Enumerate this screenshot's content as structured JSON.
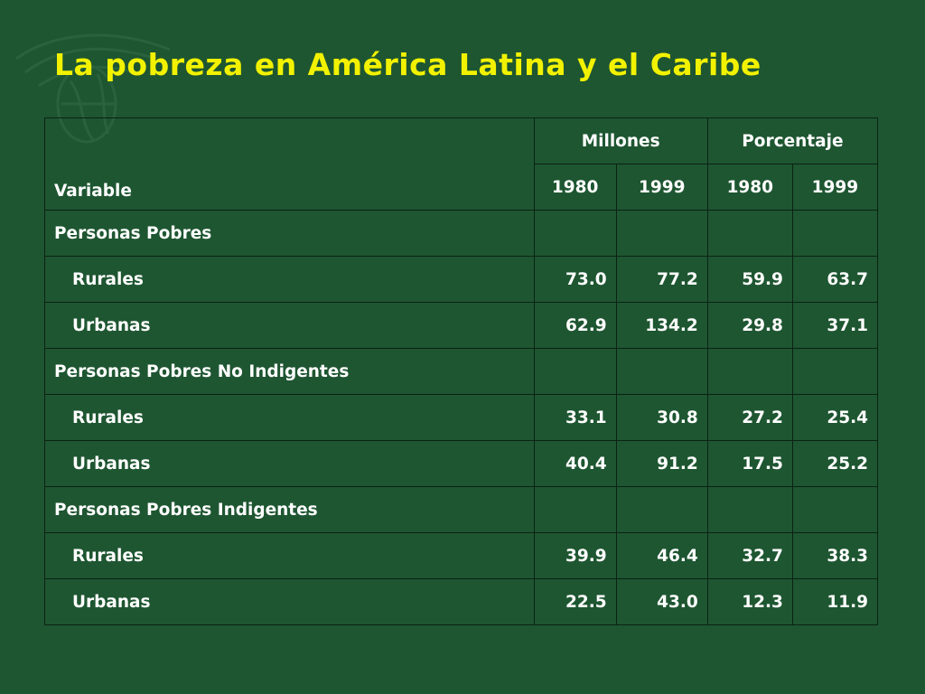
{
  "slide": {
    "title": "La pobreza en América Latina y el Caribe"
  },
  "colors": {
    "background": "#1e5631",
    "title": "#f2f200",
    "text": "#ffffff",
    "grid": "#0b2213"
  },
  "table": {
    "header_variable": "Variable",
    "groups": [
      "Millones",
      "Porcentaje"
    ],
    "years": [
      "1980",
      "1999",
      "1980",
      "1999"
    ],
    "rows": [
      {
        "label": "Personas Pobres",
        "indent": false,
        "values": [
          "",
          "",
          "",
          ""
        ]
      },
      {
        "label": "Rurales",
        "indent": true,
        "values": [
          "73.0",
          "77.2",
          "59.9",
          "63.7"
        ]
      },
      {
        "label": "Urbanas",
        "indent": true,
        "values": [
          "62.9",
          "134.2",
          "29.8",
          "37.1"
        ]
      },
      {
        "label": "Personas Pobres No Indigentes",
        "indent": false,
        "values": [
          "",
          "",
          "",
          ""
        ]
      },
      {
        "label": "Rurales",
        "indent": true,
        "values": [
          "33.1",
          "30.8",
          "27.2",
          "25.4"
        ]
      },
      {
        "label": "Urbanas",
        "indent": true,
        "values": [
          "40.4",
          "91.2",
          "17.5",
          "25.2"
        ]
      },
      {
        "label": "Personas Pobres Indigentes",
        "indent": false,
        "values": [
          "",
          "",
          "",
          ""
        ]
      },
      {
        "label": "Rurales",
        "indent": true,
        "values": [
          "39.9",
          "46.4",
          "32.7",
          "38.3"
        ]
      },
      {
        "label": "Urbanas",
        "indent": true,
        "values": [
          "22.5",
          "43.0",
          "12.3",
          "11.9"
        ]
      }
    ]
  }
}
